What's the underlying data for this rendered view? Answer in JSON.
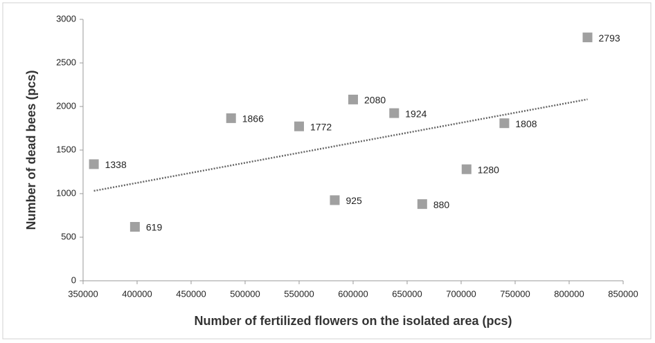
{
  "chart_data": {
    "type": "scatter",
    "x_label": "Number of fertilized flowers on the isolated area (pcs)",
    "y_label": "Number of dead bees (pcs)",
    "x": [
      360000,
      398000,
      487000,
      550000,
      583000,
      600000,
      638000,
      664000,
      705000,
      740000,
      817000
    ],
    "values": [
      1338,
      619,
      1866,
      1772,
      925,
      2080,
      1924,
      880,
      1280,
      1808,
      2793
    ],
    "color": "#a0a0a0",
    "trendline": "linear",
    "trendline_color": "#666666",
    "xlim": [
      350000,
      850000
    ],
    "xticks": [
      350000,
      400000,
      450000,
      500000,
      550000,
      600000,
      650000,
      700000,
      750000,
      800000,
      850000
    ],
    "ylim": [
      0,
      3000
    ],
    "yticks": [
      0,
      500,
      1000,
      1500,
      2000,
      2500,
      3000
    ],
    "grid": false
  }
}
